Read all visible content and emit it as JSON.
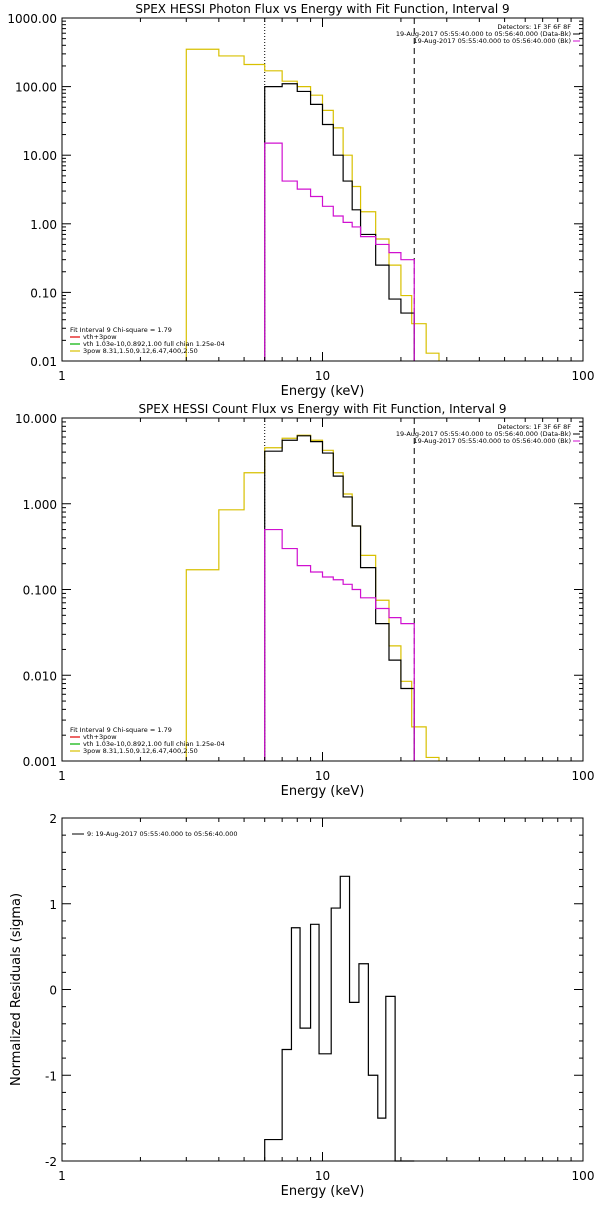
{
  "colors": {
    "axes": "#000000",
    "black": "#000000",
    "yellow": "#d8c000",
    "magenta": "#d010d0",
    "red": "#e00000",
    "green": "#00b000"
  },
  "chart_data": [
    {
      "type": "line",
      "step": true,
      "title": "SPEX HESSI Photon Flux vs Energy with Fit Function, Interval 9",
      "xlabel": "Energy (keV)",
      "ylabel": "",
      "xscale": "log",
      "yscale": "log",
      "xlim": [
        1,
        100
      ],
      "ylim": [
        0.01,
        1000
      ],
      "x_ticks": [
        1,
        10,
        100
      ],
      "x_tick_labels": [
        "1",
        "10",
        "100"
      ],
      "y_ticks": [
        0.01,
        0.1,
        1,
        10,
        100,
        1000
      ],
      "y_tick_labels": [
        "0.01",
        "0.10",
        "1.00",
        "10.00",
        "100.00",
        "1000.00"
      ],
      "vlines": [
        {
          "x": 6,
          "style": "dotted"
        },
        {
          "x": 22.5,
          "style": "dashed"
        }
      ],
      "header_lines": [
        "Detectors: 1F 3F 6F 8F",
        "19-Aug-2017 05:55:40.000 to 05:56:40.000 (Data-Bk)",
        "19-Aug-2017 05:55:40.000 to 05:56:40.000 (Bk)"
      ],
      "fit_legend": {
        "heading": "Fit Interval 9   Chi-square = 1.79",
        "entries": [
          {
            "text": "vth+3pow",
            "color": "red"
          },
          {
            "text": "vth 1.03e-10,0.892,1.00  full chian 1.25e-04",
            "color": "green"
          },
          {
            "text": "3pow 8.31,1.50,9.12,6.47,400,2.50",
            "color": "yellow"
          }
        ]
      },
      "series": [
        {
          "color": "yellow",
          "edges": [
            3,
            4,
            5,
            6,
            7,
            8,
            9,
            10,
            11,
            12,
            13,
            14,
            16,
            18,
            20,
            22,
            25,
            28
          ],
          "values": [
            350,
            280,
            210,
            170,
            120,
            100,
            75,
            45,
            25,
            10,
            3.5,
            1.5,
            0.6,
            0.25,
            0.09,
            0.035,
            0.013
          ]
        },
        {
          "color": "black",
          "edges": [
            6,
            7,
            8,
            9,
            10,
            11,
            12,
            13,
            14,
            16,
            18,
            20,
            22.5
          ],
          "values": [
            100,
            110,
            85,
            55,
            28,
            10,
            4.2,
            1.6,
            0.7,
            0.25,
            0.08,
            0.05
          ]
        },
        {
          "color": "magenta",
          "edges": [
            6,
            7,
            8,
            9,
            10,
            11,
            12,
            13,
            14,
            16,
            18,
            20,
            22.5
          ],
          "values": [
            15,
            4.2,
            3.2,
            2.5,
            1.8,
            1.3,
            1.05,
            0.9,
            0.65,
            0.5,
            0.38,
            0.3
          ]
        }
      ]
    },
    {
      "type": "line",
      "step": true,
      "title": "SPEX HESSI Count Flux vs Energy with Fit Function, Interval 9",
      "xlabel": "Energy (keV)",
      "ylabel": "",
      "xscale": "log",
      "yscale": "log",
      "xlim": [
        1,
        100
      ],
      "ylim": [
        0.001,
        10
      ],
      "x_ticks": [
        1,
        10,
        100
      ],
      "x_tick_labels": [
        "1",
        "10",
        "100"
      ],
      "y_ticks": [
        0.001,
        0.01,
        0.1,
        1,
        10
      ],
      "y_tick_labels": [
        "0.001",
        "0.010",
        "0.100",
        "1.000",
        "10.000"
      ],
      "vlines": [
        {
          "x": 6,
          "style": "dotted"
        },
        {
          "x": 22.5,
          "style": "dashed"
        }
      ],
      "header_lines": [
        "Detectors: 1F 3F 6F 8F",
        "19-Aug-2017 05:55:40.000 to 05:56:40.000 (Data-Bk)",
        "19-Aug-2017 05:55:40.000 to 05:56:40.000 (Bk)"
      ],
      "fit_legend": {
        "heading": "Fit Interval 9   Chi-square = 1.79",
        "entries": [
          {
            "text": "vth+3pow",
            "color": "red"
          },
          {
            "text": "vth 1.03e-10,0.892,1.00  full chian 1.25e-04",
            "color": "green"
          },
          {
            "text": "3pow 8.31,1.50,9.12,6.47,400,2.50",
            "color": "yellow"
          }
        ]
      },
      "series": [
        {
          "color": "yellow",
          "edges": [
            3,
            4,
            5,
            6,
            7,
            8,
            9,
            10,
            11,
            12,
            13,
            14,
            16,
            18,
            20,
            22,
            25,
            28
          ],
          "values": [
            0.17,
            0.85,
            2.3,
            4.5,
            5.8,
            6.3,
            5.5,
            4.2,
            2.3,
            1.3,
            0.55,
            0.25,
            0.075,
            0.022,
            0.0085,
            0.0025,
            0.0011
          ]
        },
        {
          "color": "black",
          "edges": [
            6,
            7,
            8,
            9,
            10,
            11,
            12,
            13,
            14,
            16,
            18,
            20,
            22.5
          ],
          "values": [
            4.1,
            5.5,
            6.2,
            5.3,
            3.9,
            2.1,
            1.2,
            0.55,
            0.18,
            0.04,
            0.015,
            0.007
          ]
        },
        {
          "color": "magenta",
          "edges": [
            6,
            7,
            8,
            9,
            10,
            11,
            12,
            13,
            14,
            16,
            18,
            20,
            22.5
          ],
          "values": [
            0.5,
            0.3,
            0.19,
            0.16,
            0.14,
            0.13,
            0.115,
            0.1,
            0.08,
            0.06,
            0.047,
            0.04
          ]
        }
      ]
    },
    {
      "type": "line",
      "step": true,
      "title": "",
      "xlabel": "Energy (keV)",
      "ylabel": "Normalized Residuals (sigma)",
      "xscale": "log",
      "yscale": "linear",
      "xlim": [
        1,
        100
      ],
      "ylim": [
        -2,
        2
      ],
      "x_ticks": [
        1,
        10,
        100
      ],
      "x_tick_labels": [
        "1",
        "10",
        "100"
      ],
      "y_ticks": [
        -2,
        -1,
        0,
        1,
        2
      ],
      "y_tick_labels": [
        "-2",
        "-1",
        "0",
        "1",
        "2"
      ],
      "legend": {
        "text": "9: 19-Aug-2017 05:55:40.000 to 05:56:40.000",
        "color": "black"
      },
      "series": [
        {
          "color": "black",
          "edges": [
            6,
            7,
            7.6,
            8.2,
            9,
            9.7,
            10.8,
            11.7,
            12.7,
            13.8,
            15,
            16.3,
            17.5,
            19,
            20.5,
            22.5
          ],
          "values": [
            -1.75,
            -0.7,
            0.72,
            -0.45,
            0.76,
            -0.75,
            0.95,
            1.32,
            -0.15,
            0.3,
            -1.0,
            -1.5,
            -0.08,
            -2.0,
            -2.0
          ]
        }
      ]
    }
  ]
}
